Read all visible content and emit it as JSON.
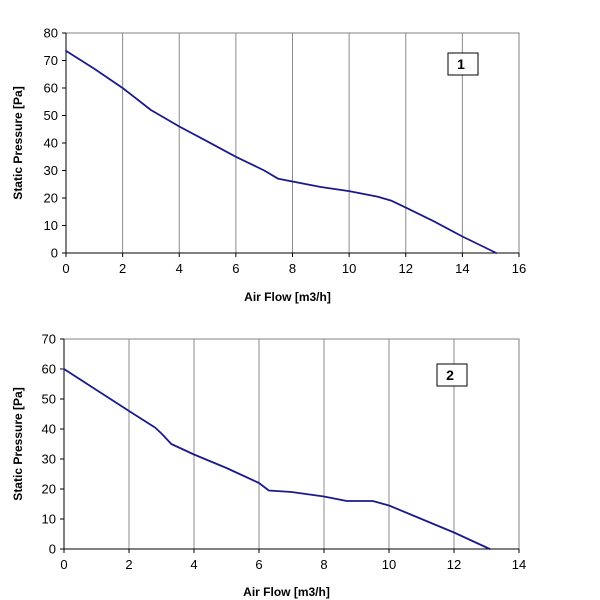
{
  "colors": {
    "line": "#1a1a8c",
    "grid": "#8c8c8c",
    "frame": "#808080",
    "background": "#ffffff"
  },
  "chart_data": [
    {
      "type": "line",
      "panel_label": "1",
      "xlabel": "Air Flow [m3/h]",
      "ylabel": "Static Pressure [Pa]",
      "xlim": [
        0,
        16
      ],
      "ylim": [
        0,
        80
      ],
      "xticks": [
        0,
        2,
        4,
        6,
        8,
        10,
        12,
        14,
        16
      ],
      "yticks": [
        0,
        10,
        20,
        30,
        40,
        50,
        60,
        70,
        80
      ],
      "grid": "vertical",
      "series": [
        {
          "x": [
            0,
            1,
            2,
            3,
            4,
            5,
            6,
            7,
            7.5,
            8,
            9,
            10,
            11,
            11.5,
            12,
            13,
            14,
            15.2
          ],
          "y": [
            73.5,
            67,
            60,
            52,
            46,
            40.5,
            35,
            30,
            27,
            26,
            24,
            22.5,
            20.5,
            19,
            16.5,
            11.5,
            6,
            0
          ]
        }
      ]
    },
    {
      "type": "line",
      "panel_label": "2",
      "xlabel": "Air Flow [m3/h]",
      "ylabel": "Static Pressure [Pa]",
      "xlim": [
        0,
        14
      ],
      "ylim": [
        0,
        70
      ],
      "xticks": [
        0,
        2,
        4,
        6,
        8,
        10,
        12,
        14
      ],
      "yticks": [
        0,
        10,
        20,
        30,
        40,
        50,
        60,
        70
      ],
      "grid": "vertical",
      "series": [
        {
          "x": [
            0,
            1,
            2,
            2.8,
            3,
            3.3,
            4,
            5,
            6,
            6.3,
            7,
            8,
            8.7,
            9.5,
            10,
            11,
            12,
            13.1
          ],
          "y": [
            60,
            53,
            46,
            40.5,
            38.5,
            35,
            31.5,
            27,
            22,
            19.5,
            19,
            17.5,
            16,
            16,
            14.5,
            10,
            5.5,
            0
          ]
        }
      ]
    }
  ]
}
